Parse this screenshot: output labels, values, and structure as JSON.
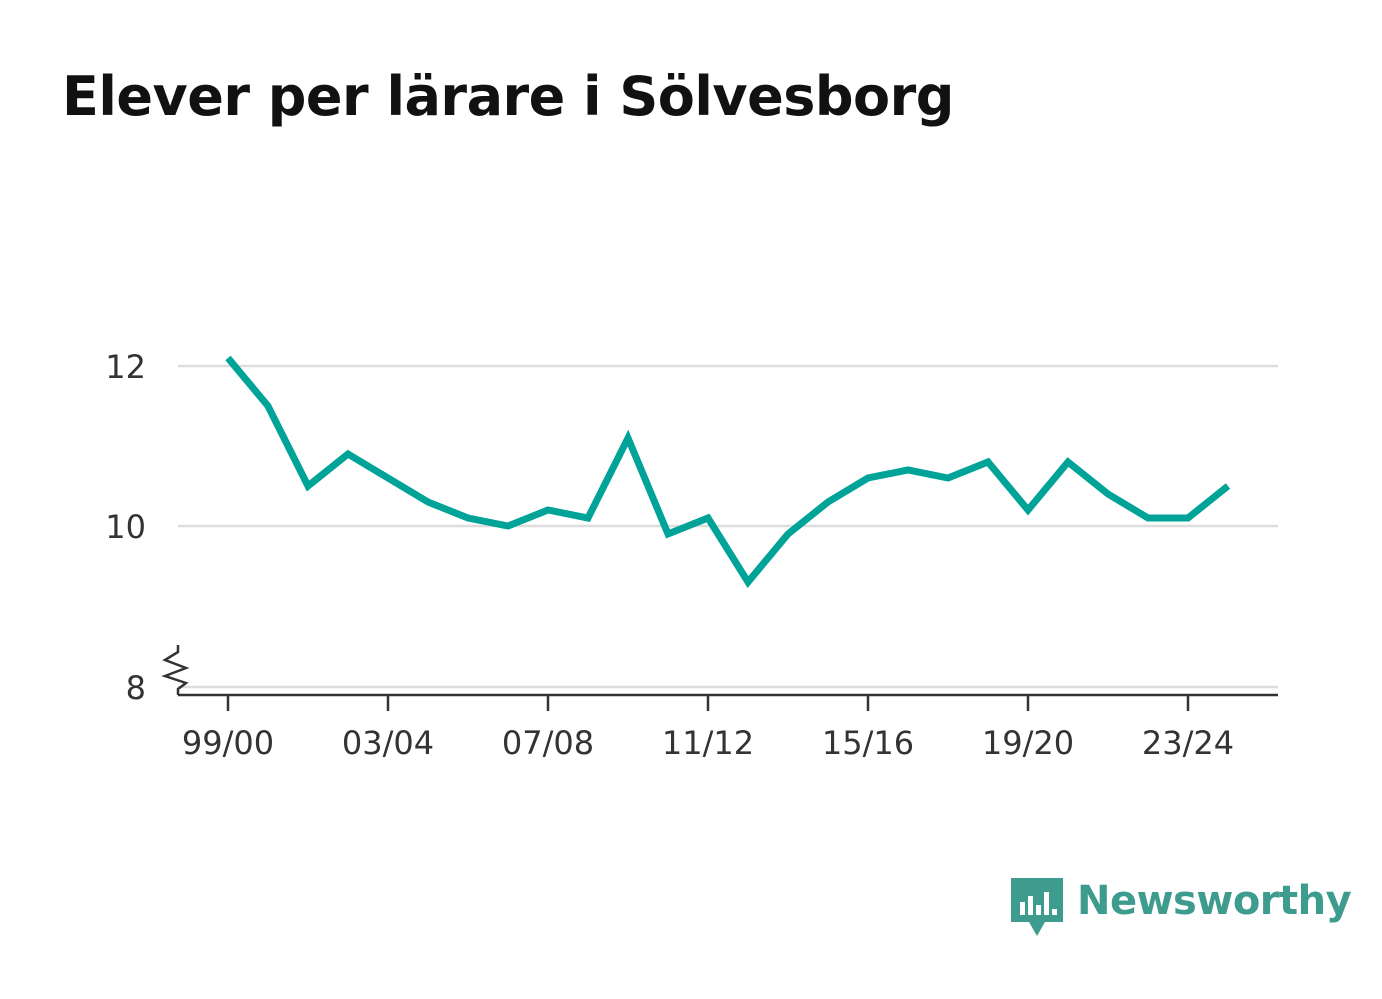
{
  "title": "Elever per lärare i Sölvesborg",
  "brand": {
    "name": "Newsworthy",
    "logo_icon": "bar-chart-speech-bubble-icon",
    "color": "#3d9c8d"
  },
  "chart_data": {
    "type": "line",
    "title": "Elever per lärare i Sölvesborg",
    "xlabel": "",
    "ylabel": "",
    "categories": [
      "99/00",
      "00/01",
      "01/02",
      "02/03",
      "03/04",
      "04/05",
      "05/06",
      "06/07",
      "07/08",
      "08/09",
      "09/10",
      "10/11",
      "11/12",
      "12/13",
      "13/14",
      "14/15",
      "15/16",
      "16/17",
      "17/18",
      "18/19",
      "19/20",
      "20/21",
      "21/22",
      "22/23",
      "23/24",
      "24/25"
    ],
    "x_tick_labels": [
      "99/00",
      "03/04",
      "07/08",
      "11/12",
      "15/16",
      "19/20",
      "23/24"
    ],
    "y_tick_labels": [
      "8",
      "10",
      "12"
    ],
    "series": [
      {
        "values": [
          12.1,
          11.5,
          10.5,
          10.9,
          10.6,
          10.3,
          10.1,
          10.0,
          10.2,
          10.1,
          11.1,
          9.9,
          10.1,
          9.3,
          9.9,
          10.3,
          10.6,
          10.7,
          10.6,
          10.8,
          10.2,
          10.8,
          10.4,
          10.1,
          10.1,
          10.5
        ],
        "color": "#00a398"
      }
    ],
    "ylim": [
      8,
      12
    ],
    "y_axis_break": true,
    "grid": true,
    "legend": "none"
  }
}
